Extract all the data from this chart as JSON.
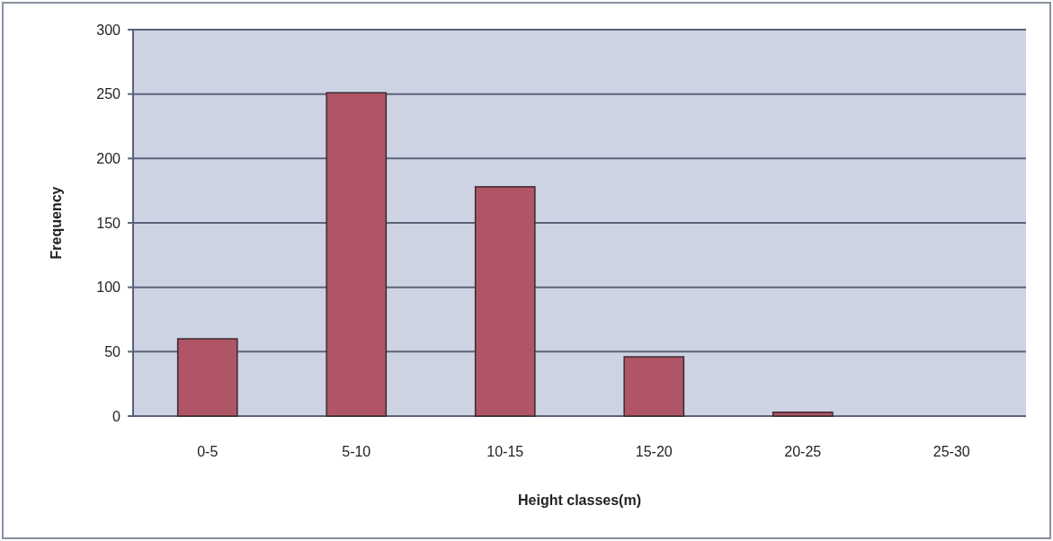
{
  "chart_data": {
    "type": "bar",
    "xlabel": "Height classes(m)",
    "ylabel": "Frequency",
    "categories": [
      "0-5",
      "5-10",
      "10-15",
      "15-20",
      "20-25",
      "25-30"
    ],
    "values": [
      60,
      251,
      178,
      46,
      3,
      0
    ],
    "color": "#b05566",
    "ylim": [
      0,
      300
    ],
    "yticks": [
      0,
      50,
      100,
      150,
      200,
      250,
      300
    ],
    "grid": "y"
  }
}
